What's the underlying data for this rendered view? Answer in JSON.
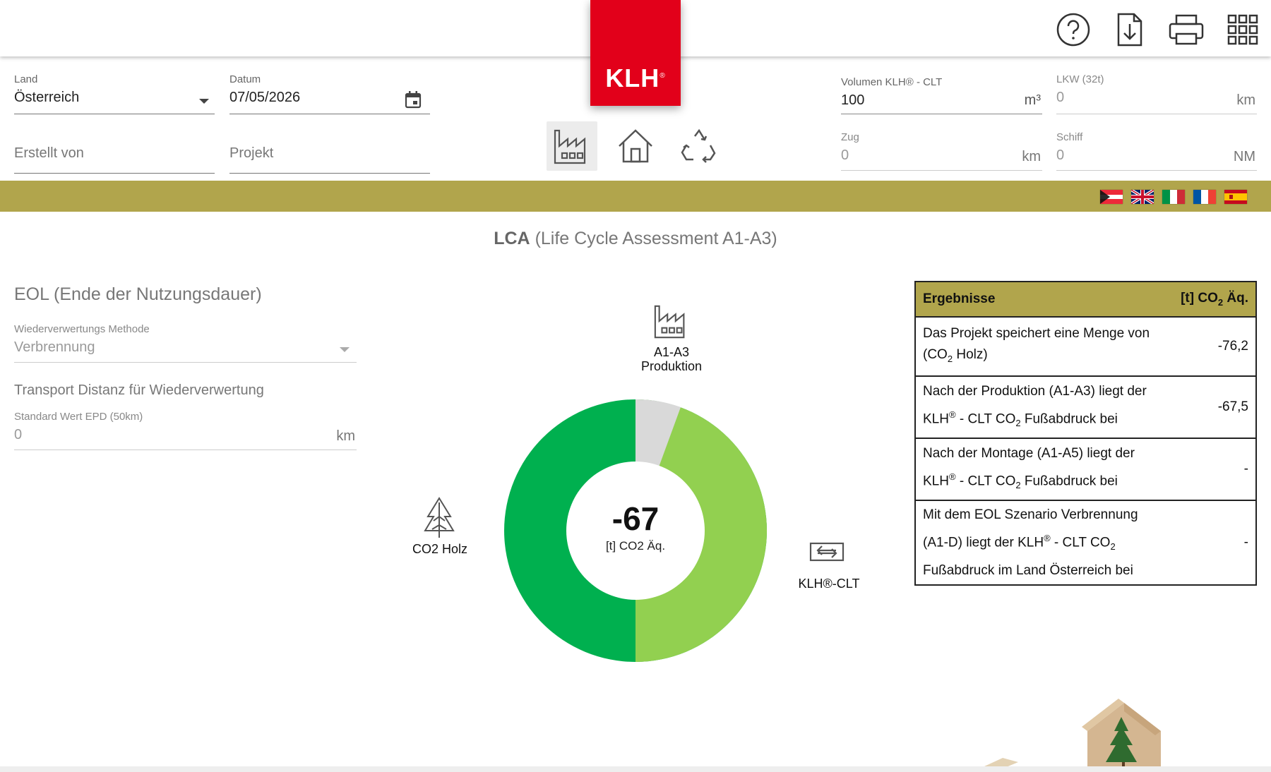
{
  "brand": {
    "logo_text": "KLH",
    "logo_mark": "®",
    "red": "#e2001a",
    "gold": "#b1a54c"
  },
  "toolbar": {
    "icons": [
      "help-icon",
      "download-icon",
      "print-icon",
      "apps-grid-icon"
    ]
  },
  "form": {
    "land": {
      "label": "Land",
      "value": "Österreich"
    },
    "datum": {
      "label": "Datum",
      "value": "07/05/2026"
    },
    "erstellt": {
      "placeholder": "Erstellt von"
    },
    "projekt": {
      "placeholder": "Projekt"
    },
    "volumen": {
      "label": "Volumen KLH® - CLT",
      "value": "100",
      "unit": "m³"
    },
    "lkw": {
      "label": "LKW (32t)",
      "value": "0",
      "unit": "km"
    },
    "zug": {
      "label": "Zug",
      "value": "0",
      "unit": "km"
    },
    "schiff": {
      "label": "Schiff",
      "value": "0",
      "unit": "NM"
    }
  },
  "stages": [
    "factory-icon",
    "house-icon",
    "recycle-icon"
  ],
  "languages": [
    "at",
    "gb",
    "it",
    "fr",
    "es"
  ],
  "lca": {
    "title_bold": "LCA",
    "title_rest": " (Life Cycle Assessment A1-A3)"
  },
  "eol": {
    "title": "EOL (Ende der Nutzungsdauer)",
    "method_label": "Wiederverwertungs Methode",
    "method_value": "Verbrennung",
    "transport_title": "Transport Distanz für Wiederverwertung",
    "transport_label": "Standard Wert EPD (50km)",
    "transport_value": "0",
    "transport_unit": "km"
  },
  "donut": {
    "center_value": "-67",
    "center_unit": "[t] CO2 Äq.",
    "production_label_1": "A1-A3",
    "production_label_2": "Produktion",
    "wood_label": "CO2 Holz",
    "clt_label": "KLH®-CLT"
  },
  "results": {
    "head_left": "Ergebnisse",
    "head_right_a": "[t] CO",
    "head_right_sub": "2",
    "head_right_b": " Äq.",
    "rows": [
      {
        "l1": "Das Projekt speichert eine Menge von",
        "l2a": "(CO",
        "l2sub": "2",
        "l2b": " Holz)",
        "value": "-76,2"
      },
      {
        "l1": "Nach der Produktion (A1-A3) liegt der",
        "l2a": "KLH",
        "l2sup": "®",
        "l2b": " - CLT CO",
        "l2sub": "2",
        "l2c": " Fußabdruck bei",
        "value": "-67,5"
      },
      {
        "l1": "Nach der Montage (A1-A5) liegt der",
        "l2a": "KLH",
        "l2sup": "®",
        "l2b": " - CLT CO",
        "l2sub": "2",
        "l2c": " Fußabdruck bei",
        "value": "-"
      },
      {
        "l1": "Mit dem EOL Szenario Verbrennung",
        "l2a": "(A1-D) liegt der KLH",
        "l2sup": "®",
        "l2b": " - CLT CO",
        "l2sub": "2",
        "l3": "Fußabdruck im Land Österreich bei",
        "value": "-"
      }
    ]
  }
}
